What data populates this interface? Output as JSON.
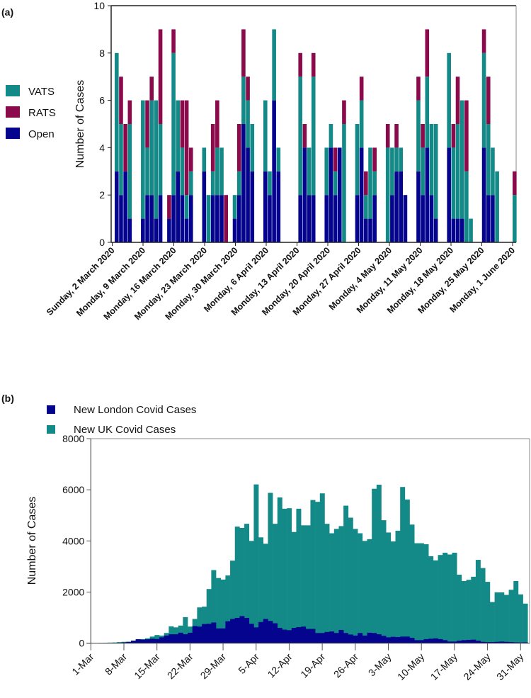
{
  "chart_data": [
    {
      "panel": "(a)",
      "type": "bar",
      "stacked": true,
      "ylabel": "Number of Cases",
      "ylim": [
        0,
        10
      ],
      "yticks": [
        "0",
        "2",
        "4",
        "6",
        "8",
        "10"
      ],
      "x_start_label": "Sunday, 2 March 2020",
      "xticks": [
        "Sunday, 2 March 2020",
        "Monday, 9 March 2020",
        "Monday, 16 March 2020",
        "Monday, 23 March 2020",
        "Monday, 30 March 2020",
        "Monday, 6 April 2020",
        "Monday, 13 April 2020",
        "Monday, 20 April 2020",
        "Monday, 27 April 2020",
        "Monday, 4 May 2020",
        "Monday, 11 May 2020",
        "Monday, 18 May 2020",
        "Monday, 25 May 2020",
        "Monday, 1 June 2020"
      ],
      "legend": [
        {
          "name": "VATS",
          "color": "#138a87"
        },
        {
          "name": "RATS",
          "color": "#8b0a4b"
        },
        {
          "name": "Open",
          "color": "#05048f"
        }
      ],
      "series_order": [
        "Open",
        "VATS",
        "RATS"
      ],
      "bars_day_open_vats_rats": [
        [
          0,
          3,
          5,
          0
        ],
        [
          1,
          2,
          3,
          2
        ],
        [
          2,
          3,
          0,
          2
        ],
        [
          3,
          1,
          4,
          1
        ],
        [
          6,
          1,
          5,
          0
        ],
        [
          7,
          2,
          2,
          2
        ],
        [
          8,
          2,
          4,
          1
        ],
        [
          9,
          1,
          5,
          0
        ],
        [
          10,
          2,
          3,
          4
        ],
        [
          12,
          1,
          0,
          1
        ],
        [
          13,
          2,
          6,
          1
        ],
        [
          14,
          3,
          3,
          0
        ],
        [
          15,
          2,
          2,
          2
        ],
        [
          16,
          1,
          1,
          4
        ],
        [
          17,
          2,
          1,
          1
        ],
        [
          20,
          3,
          1,
          0
        ],
        [
          21,
          0,
          2,
          0
        ],
        [
          22,
          2,
          1,
          2
        ],
        [
          23,
          2,
          2,
          2
        ],
        [
          24,
          2,
          2,
          0
        ],
        [
          25,
          0,
          0,
          2
        ],
        [
          27,
          1,
          1,
          0
        ],
        [
          28,
          2,
          1,
          2
        ],
        [
          29,
          5,
          2,
          2
        ],
        [
          30,
          4,
          2,
          1
        ],
        [
          31,
          3,
          2,
          0
        ],
        [
          34,
          3,
          3,
          0
        ],
        [
          35,
          2,
          1,
          0
        ],
        [
          36,
          6,
          3,
          0
        ],
        [
          37,
          3,
          1,
          0
        ],
        [
          42,
          2,
          5,
          1
        ],
        [
          43,
          4,
          0,
          1
        ],
        [
          44,
          2,
          2,
          0
        ],
        [
          45,
          2,
          5,
          1
        ],
        [
          48,
          2,
          2,
          0
        ],
        [
          49,
          4,
          1,
          0
        ],
        [
          50,
          2,
          1,
          1
        ],
        [
          51,
          4,
          0,
          0
        ],
        [
          52,
          0,
          5,
          1
        ],
        [
          55,
          2,
          3,
          0
        ],
        [
          56,
          4,
          2,
          1
        ],
        [
          57,
          1,
          1,
          1
        ],
        [
          58,
          1,
          3,
          0
        ],
        [
          59,
          2,
          1,
          1
        ],
        [
          62,
          0,
          4,
          1
        ],
        [
          63,
          2,
          2,
          0
        ],
        [
          64,
          3,
          1,
          1
        ],
        [
          65,
          3,
          1,
          0
        ],
        [
          66,
          2,
          0,
          0
        ],
        [
          69,
          3,
          3,
          1
        ],
        [
          70,
          2,
          2,
          1
        ],
        [
          71,
          4,
          3,
          2
        ],
        [
          72,
          2,
          3,
          0
        ],
        [
          73,
          1,
          4,
          0
        ],
        [
          76,
          4,
          4,
          0
        ],
        [
          77,
          1,
          3,
          1
        ],
        [
          78,
          1,
          4,
          2
        ],
        [
          79,
          1,
          5,
          0
        ],
        [
          80,
          0,
          3,
          3
        ],
        [
          81,
          0,
          1,
          0
        ],
        [
          84,
          4,
          4,
          1
        ],
        [
          85,
          2,
          3,
          2
        ],
        [
          86,
          2,
          2,
          0
        ],
        [
          87,
          0,
          3,
          0
        ],
        [
          91,
          0,
          2,
          1
        ]
      ]
    },
    {
      "panel": "(b)",
      "type": "bar",
      "stacked": false,
      "ylabel": "Number of Cases",
      "ylim": [
        0,
        8000
      ],
      "yticks": [
        "0",
        "2000",
        "4000",
        "6000",
        "8000"
      ],
      "xticks": [
        "1-Mar",
        "8-Mar",
        "15-Mar",
        "22-Mar",
        "29-Mar",
        "5-Apr",
        "12-Apr",
        "19-Apr",
        "26-Apr",
        "3-May",
        "10-May",
        "17-May",
        "24-May",
        "31-May"
      ],
      "x_start": "1-Mar",
      "legend": [
        {
          "name": "New London Covid Cases",
          "color": "#05048f"
        },
        {
          "name": "New UK Covid Cases",
          "color": "#138a87"
        }
      ],
      "series": [
        {
          "name": "New UK Covid Cases",
          "values": [
            0,
            0,
            15,
            20,
            25,
            30,
            45,
            55,
            60,
            100,
            160,
            160,
            190,
            260,
            320,
            300,
            400,
            660,
            620,
            690,
            1020,
            650,
            950,
            1400,
            1430,
            2120,
            2860,
            2550,
            2490,
            2650,
            3230,
            4560,
            4510,
            4670,
            4000,
            6210,
            4140,
            3890,
            5880,
            4670,
            5700,
            5260,
            5280,
            4350,
            5260,
            4610,
            4610,
            5600,
            5530,
            5860,
            4670,
            4300,
            4470,
            4580,
            5380,
            4910,
            4470,
            4300,
            4000,
            4070,
            6040,
            6200,
            4810,
            4330,
            3980,
            4400,
            6110,
            5620,
            4640,
            3910,
            3910,
            3870,
            3400,
            3240,
            3450,
            3540,
            3470,
            3540,
            2680,
            2430,
            2480,
            2600,
            3260,
            2940,
            2400,
            1610,
            1990,
            1990,
            1890,
            2090,
            2430,
            1910,
            1550
          ]
        },
        {
          "name": "New London Covid Cases",
          "values": [
            0,
            0,
            5,
            8,
            10,
            15,
            20,
            30,
            50,
            100,
            155,
            140,
            155,
            175,
            165,
            230,
            300,
            350,
            350,
            410,
            350,
            410,
            670,
            650,
            750,
            760,
            810,
            580,
            580,
            860,
            950,
            990,
            1060,
            990,
            760,
            620,
            830,
            950,
            870,
            780,
            600,
            530,
            510,
            600,
            630,
            650,
            560,
            560,
            400,
            400,
            440,
            460,
            400,
            520,
            400,
            340,
            300,
            400,
            300,
            410,
            400,
            350,
            290,
            230,
            250,
            240,
            260,
            260,
            210,
            120,
            120,
            160,
            175,
            190,
            160,
            120,
            65,
            65,
            100,
            120,
            130,
            140,
            100,
            55,
            45,
            45,
            55,
            65,
            55,
            45,
            35,
            30,
            35
          ]
        }
      ]
    }
  ]
}
